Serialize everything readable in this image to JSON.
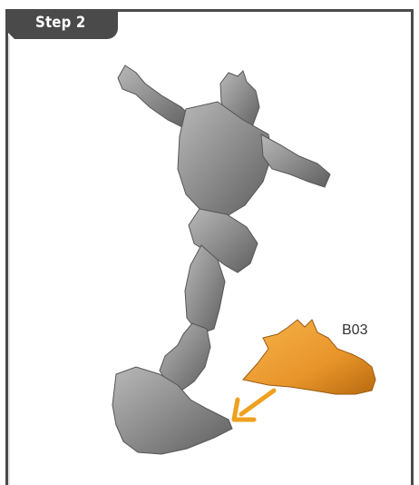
{
  "header": {
    "step_label": "Step 2"
  },
  "part": {
    "code": "B03",
    "color": "#e8952a"
  },
  "figure": {
    "color": "#8c8c8c"
  },
  "arrow": {
    "color": "#f0a020"
  },
  "frame": {
    "color": "#4a4a4a"
  }
}
